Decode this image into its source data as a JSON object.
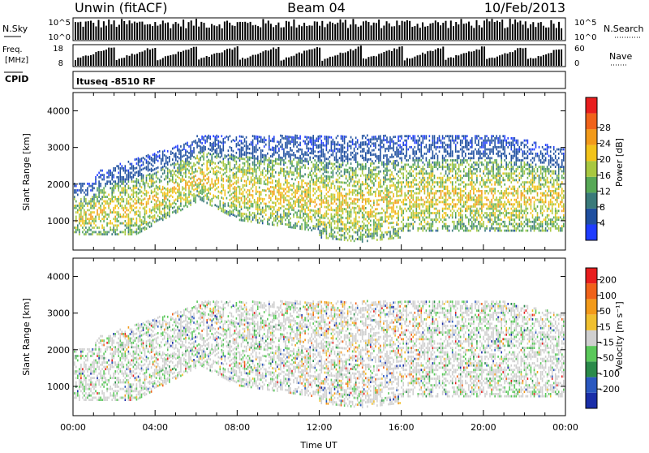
{
  "header": {
    "title_left": "Unwin (fitACF)",
    "title_center": "Beam 04",
    "title_right": "10/Feb/2013"
  },
  "strips": {
    "nsky": {
      "label": "N.Sky",
      "tick_top": "10^5",
      "tick_bottom": "10^0",
      "right_tick_top": "10^5",
      "right_tick_bottom": "10^0",
      "right_label": "N.Search"
    },
    "freq": {
      "label_top": "Freq.",
      "label_bottom": "[MHz]",
      "tick_top": "18",
      "tick_bottom": "8",
      "right_tick_top": "60",
      "right_tick_bottom": "0",
      "right_label": "Nave"
    },
    "cpid": {
      "label": "CPID",
      "value": "Ituseq -8510 RF"
    }
  },
  "chart_data": [
    {
      "type": "heatmap",
      "name": "power",
      "ylabel": "Slant Range [km]",
      "xlabel": "",
      "ylim": [
        200,
        4500
      ],
      "yticks": [
        "1000",
        "2000",
        "3000",
        "4000"
      ],
      "xticks": [
        "00:00",
        "04:00",
        "08:00",
        "12:00",
        "16:00",
        "20:00",
        "00:00"
      ],
      "colorbar": {
        "label": "Power [dB]",
        "ticks": [
          "4",
          "8",
          "12",
          "16",
          "20",
          "24",
          "28"
        ],
        "colors": [
          "#1f3cff",
          "#1f4f9f",
          "#3a7a7a",
          "#57a856",
          "#a8c840",
          "#f2c31a",
          "#f29a1a",
          "#f0621a",
          "#e81e1e"
        ]
      }
    },
    {
      "type": "heatmap",
      "name": "velocity",
      "ylabel": "Slant Range [km]",
      "xlabel": "Time UT",
      "ylim": [
        200,
        4500
      ],
      "yticks": [
        "1000",
        "2000",
        "3000",
        "4000"
      ],
      "xticks": [
        "00:00",
        "04:00",
        "08:00",
        "12:00",
        "16:00",
        "20:00",
        "00:00"
      ],
      "colorbar": {
        "label": "Velocity [m s⁻¹]",
        "ticks": [
          "200",
          "100",
          "50",
          "15",
          "-15",
          "-50",
          "-100",
          "-200"
        ],
        "colors": [
          "#1a2ea8",
          "#2a58c0",
          "#2a8a4a",
          "#5ac85a",
          "#cfcfcf",
          "#f0c030",
          "#f29a1a",
          "#f0621a",
          "#e81e1e"
        ]
      }
    }
  ],
  "colors": {
    "axis": "#000000",
    "grid": "#cccccc"
  }
}
